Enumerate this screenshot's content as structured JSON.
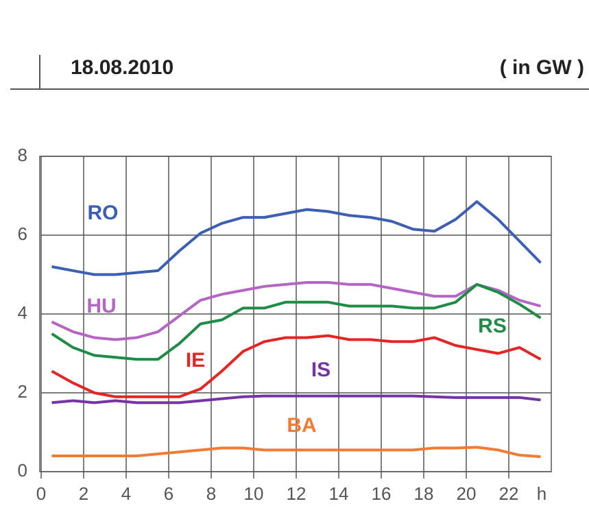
{
  "chart_data": {
    "type": "line",
    "title": "18.08.2010",
    "subtitle": "( in GW )",
    "x_label": "h",
    "x": [
      0.5,
      1.5,
      2.5,
      3.5,
      4.5,
      5.5,
      6.5,
      7.5,
      8.5,
      9.5,
      10.5,
      11.5,
      12.5,
      13.5,
      14.5,
      15.5,
      16.5,
      17.5,
      18.5,
      19.5,
      20.5,
      21.5,
      22.5,
      23.5
    ],
    "xlim": [
      0,
      24
    ],
    "xticks": [
      0,
      2,
      4,
      6,
      8,
      10,
      12,
      14,
      16,
      18,
      20,
      22
    ],
    "ylim": [
      0,
      8
    ],
    "yticks": [
      0,
      2,
      4,
      6,
      8
    ],
    "grid": true,
    "series": [
      {
        "name": "RO",
        "color": "#3b5fb3",
        "values": [
          5.2,
          5.1,
          5.0,
          5.0,
          5.05,
          5.1,
          5.6,
          6.05,
          6.3,
          6.45,
          6.45,
          6.55,
          6.65,
          6.6,
          6.5,
          6.45,
          6.35,
          6.15,
          6.1,
          6.4,
          6.85,
          6.4,
          5.85,
          5.3
        ]
      },
      {
        "name": "HU",
        "color": "#b565c4",
        "values": [
          3.8,
          3.55,
          3.4,
          3.35,
          3.4,
          3.55,
          3.95,
          4.35,
          4.5,
          4.6,
          4.7,
          4.75,
          4.8,
          4.8,
          4.75,
          4.75,
          4.65,
          4.55,
          4.45,
          4.45,
          4.75,
          4.6,
          4.35,
          4.2
        ]
      },
      {
        "name": "RS",
        "color": "#1f8c45",
        "values": [
          3.5,
          3.15,
          2.95,
          2.9,
          2.85,
          2.85,
          3.25,
          3.75,
          3.85,
          4.15,
          4.15,
          4.3,
          4.3,
          4.3,
          4.2,
          4.2,
          4.2,
          4.15,
          4.15,
          4.3,
          4.75,
          4.55,
          4.25,
          3.9
        ]
      },
      {
        "name": "IE",
        "color": "#e52424",
        "values": [
          2.55,
          2.25,
          2.0,
          1.9,
          1.9,
          1.9,
          1.9,
          2.1,
          2.55,
          3.05,
          3.3,
          3.4,
          3.4,
          3.45,
          3.35,
          3.35,
          3.3,
          3.3,
          3.4,
          3.2,
          3.1,
          3.0,
          3.15,
          2.85
        ]
      },
      {
        "name": "IS",
        "color": "#7533a6",
        "values": [
          1.75,
          1.8,
          1.75,
          1.8,
          1.75,
          1.75,
          1.75,
          1.8,
          1.85,
          1.9,
          1.92,
          1.92,
          1.92,
          1.92,
          1.92,
          1.92,
          1.92,
          1.92,
          1.9,
          1.88,
          1.88,
          1.88,
          1.88,
          1.82
        ]
      },
      {
        "name": "BA",
        "color": "#f27b34",
        "values": [
          0.4,
          0.4,
          0.4,
          0.4,
          0.4,
          0.45,
          0.5,
          0.55,
          0.6,
          0.6,
          0.55,
          0.55,
          0.55,
          0.55,
          0.55,
          0.55,
          0.55,
          0.55,
          0.6,
          0.6,
          0.62,
          0.55,
          0.42,
          0.38
        ]
      }
    ]
  }
}
